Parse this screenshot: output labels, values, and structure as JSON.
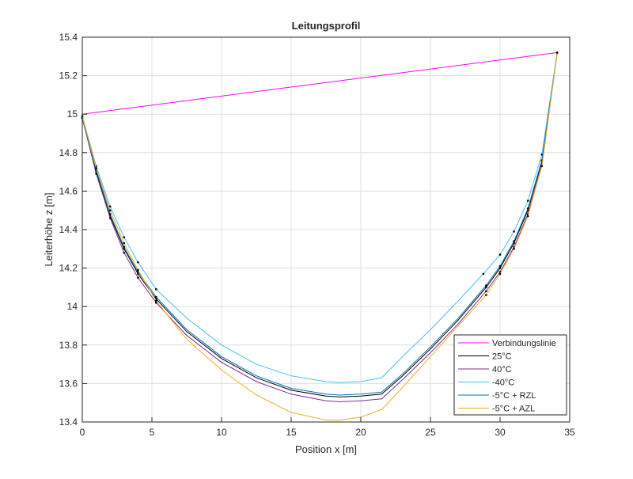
{
  "chart_data": {
    "type": "line",
    "title": "Leitungsprofil",
    "xlabel": "Position x [m]",
    "ylabel": "Leiterhöhe z [m]",
    "xlim": [
      0,
      35
    ],
    "ylim": [
      13.4,
      15.4
    ],
    "xticks": [
      "0",
      "5",
      "10",
      "15",
      "20",
      "25",
      "30",
      "35"
    ],
    "yticks": [
      "13.4",
      "13.6",
      "13.8",
      "14",
      "14.2",
      "14.4",
      "14.6",
      "14.8",
      "15",
      "15.2",
      "15.4"
    ],
    "grid": true,
    "legend_position": "bottom-right",
    "series": [
      {
        "name": "Verbindungslinie",
        "color": "#ff00ff",
        "points": [
          [
            0,
            15.0
          ],
          [
            34.1,
            15.32
          ]
        ]
      },
      {
        "name": "25°C",
        "color": "#000000",
        "points": [
          [
            0,
            14.98
          ],
          [
            1,
            14.7
          ],
          [
            2,
            14.47
          ],
          [
            3,
            14.3
          ],
          [
            4,
            14.17
          ],
          [
            5.3,
            14.04
          ],
          [
            7.5,
            13.87
          ],
          [
            10,
            13.73
          ],
          [
            12.5,
            13.63
          ],
          [
            15,
            13.565
          ],
          [
            17.5,
            13.535
          ],
          [
            18.5,
            13.53
          ],
          [
            20,
            13.535
          ],
          [
            21.5,
            13.545
          ],
          [
            23,
            13.64
          ],
          [
            25,
            13.78
          ],
          [
            27,
            13.93
          ],
          [
            29,
            14.1
          ],
          [
            30,
            14.2
          ],
          [
            31,
            14.33
          ],
          [
            32,
            14.5
          ],
          [
            33,
            14.75
          ],
          [
            34.1,
            15.32
          ]
        ]
      },
      {
        "name": "40°C",
        "color": "#7e2f8e",
        "points": [
          [
            0,
            14.98
          ],
          [
            1,
            14.69
          ],
          [
            2,
            14.46
          ],
          [
            3,
            14.28
          ],
          [
            4,
            14.15
          ],
          [
            5.3,
            14.02
          ],
          [
            7.5,
            13.85
          ],
          [
            10,
            13.71
          ],
          [
            12.5,
            13.61
          ],
          [
            15,
            13.545
          ],
          [
            17.5,
            13.51
          ],
          [
            18.5,
            13.505
          ],
          [
            20,
            13.51
          ],
          [
            21.5,
            13.52
          ],
          [
            23,
            13.62
          ],
          [
            25,
            13.76
          ],
          [
            27,
            13.91
          ],
          [
            29,
            14.08
          ],
          [
            30,
            14.18
          ],
          [
            31,
            14.31
          ],
          [
            32,
            14.48
          ],
          [
            33,
            14.73
          ],
          [
            34.1,
            15.32
          ]
        ]
      },
      {
        "name": "-40°C",
        "color": "#4dbeee",
        "points": [
          [
            0,
            14.99
          ],
          [
            1,
            14.73
          ],
          [
            2,
            14.52
          ],
          [
            3,
            14.36
          ],
          [
            4,
            14.23
          ],
          [
            5.3,
            14.09
          ],
          [
            7.5,
            13.94
          ],
          [
            10,
            13.8
          ],
          [
            12.5,
            13.7
          ],
          [
            15,
            13.64
          ],
          [
            17.5,
            13.61
          ],
          [
            18.5,
            13.605
          ],
          [
            20,
            13.61
          ],
          [
            21.5,
            13.63
          ],
          [
            23,
            13.74
          ],
          [
            25,
            13.88
          ],
          [
            27,
            14.03
          ],
          [
            28.8,
            14.17
          ],
          [
            30,
            14.27
          ],
          [
            31,
            14.39
          ],
          [
            32,
            14.55
          ],
          [
            33,
            14.79
          ],
          [
            34.1,
            15.32
          ]
        ]
      },
      {
        "name": "-5°C + RZL",
        "color": "#0072bd",
        "points": [
          [
            0,
            14.98
          ],
          [
            1,
            14.71
          ],
          [
            2,
            14.48
          ],
          [
            3,
            14.31
          ],
          [
            4,
            14.18
          ],
          [
            5.3,
            14.05
          ],
          [
            7.5,
            13.88
          ],
          [
            10,
            13.74
          ],
          [
            12.5,
            13.64
          ],
          [
            15,
            13.575
          ],
          [
            17.5,
            13.545
          ],
          [
            18.5,
            13.54
          ],
          [
            20,
            13.545
          ],
          [
            21.5,
            13.555
          ],
          [
            23,
            13.65
          ],
          [
            25,
            13.79
          ],
          [
            27,
            13.94
          ],
          [
            29,
            14.11
          ],
          [
            30,
            14.21
          ],
          [
            31,
            14.34
          ],
          [
            32,
            14.51
          ],
          [
            33,
            14.76
          ],
          [
            34.1,
            15.32
          ]
        ]
      },
      {
        "name": "-5°C + AZL",
        "color": "#edb120",
        "points": [
          [
            0,
            14.99
          ],
          [
            1,
            14.72
          ],
          [
            2,
            14.5
          ],
          [
            3,
            14.33
          ],
          [
            4,
            14.19
          ],
          [
            5.3,
            14.03
          ],
          [
            7.5,
            13.83
          ],
          [
            10,
            13.67
          ],
          [
            12.5,
            13.54
          ],
          [
            15,
            13.45
          ],
          [
            17.5,
            13.41
          ],
          [
            18.5,
            13.41
          ],
          [
            20,
            13.425
          ],
          [
            21.5,
            13.465
          ],
          [
            23,
            13.58
          ],
          [
            25,
            13.74
          ],
          [
            27,
            13.9
          ],
          [
            29,
            14.06
          ],
          [
            30,
            14.17
          ],
          [
            31,
            14.3
          ],
          [
            32,
            14.47
          ],
          [
            33,
            14.73
          ],
          [
            34.1,
            15.32
          ]
        ]
      }
    ]
  }
}
